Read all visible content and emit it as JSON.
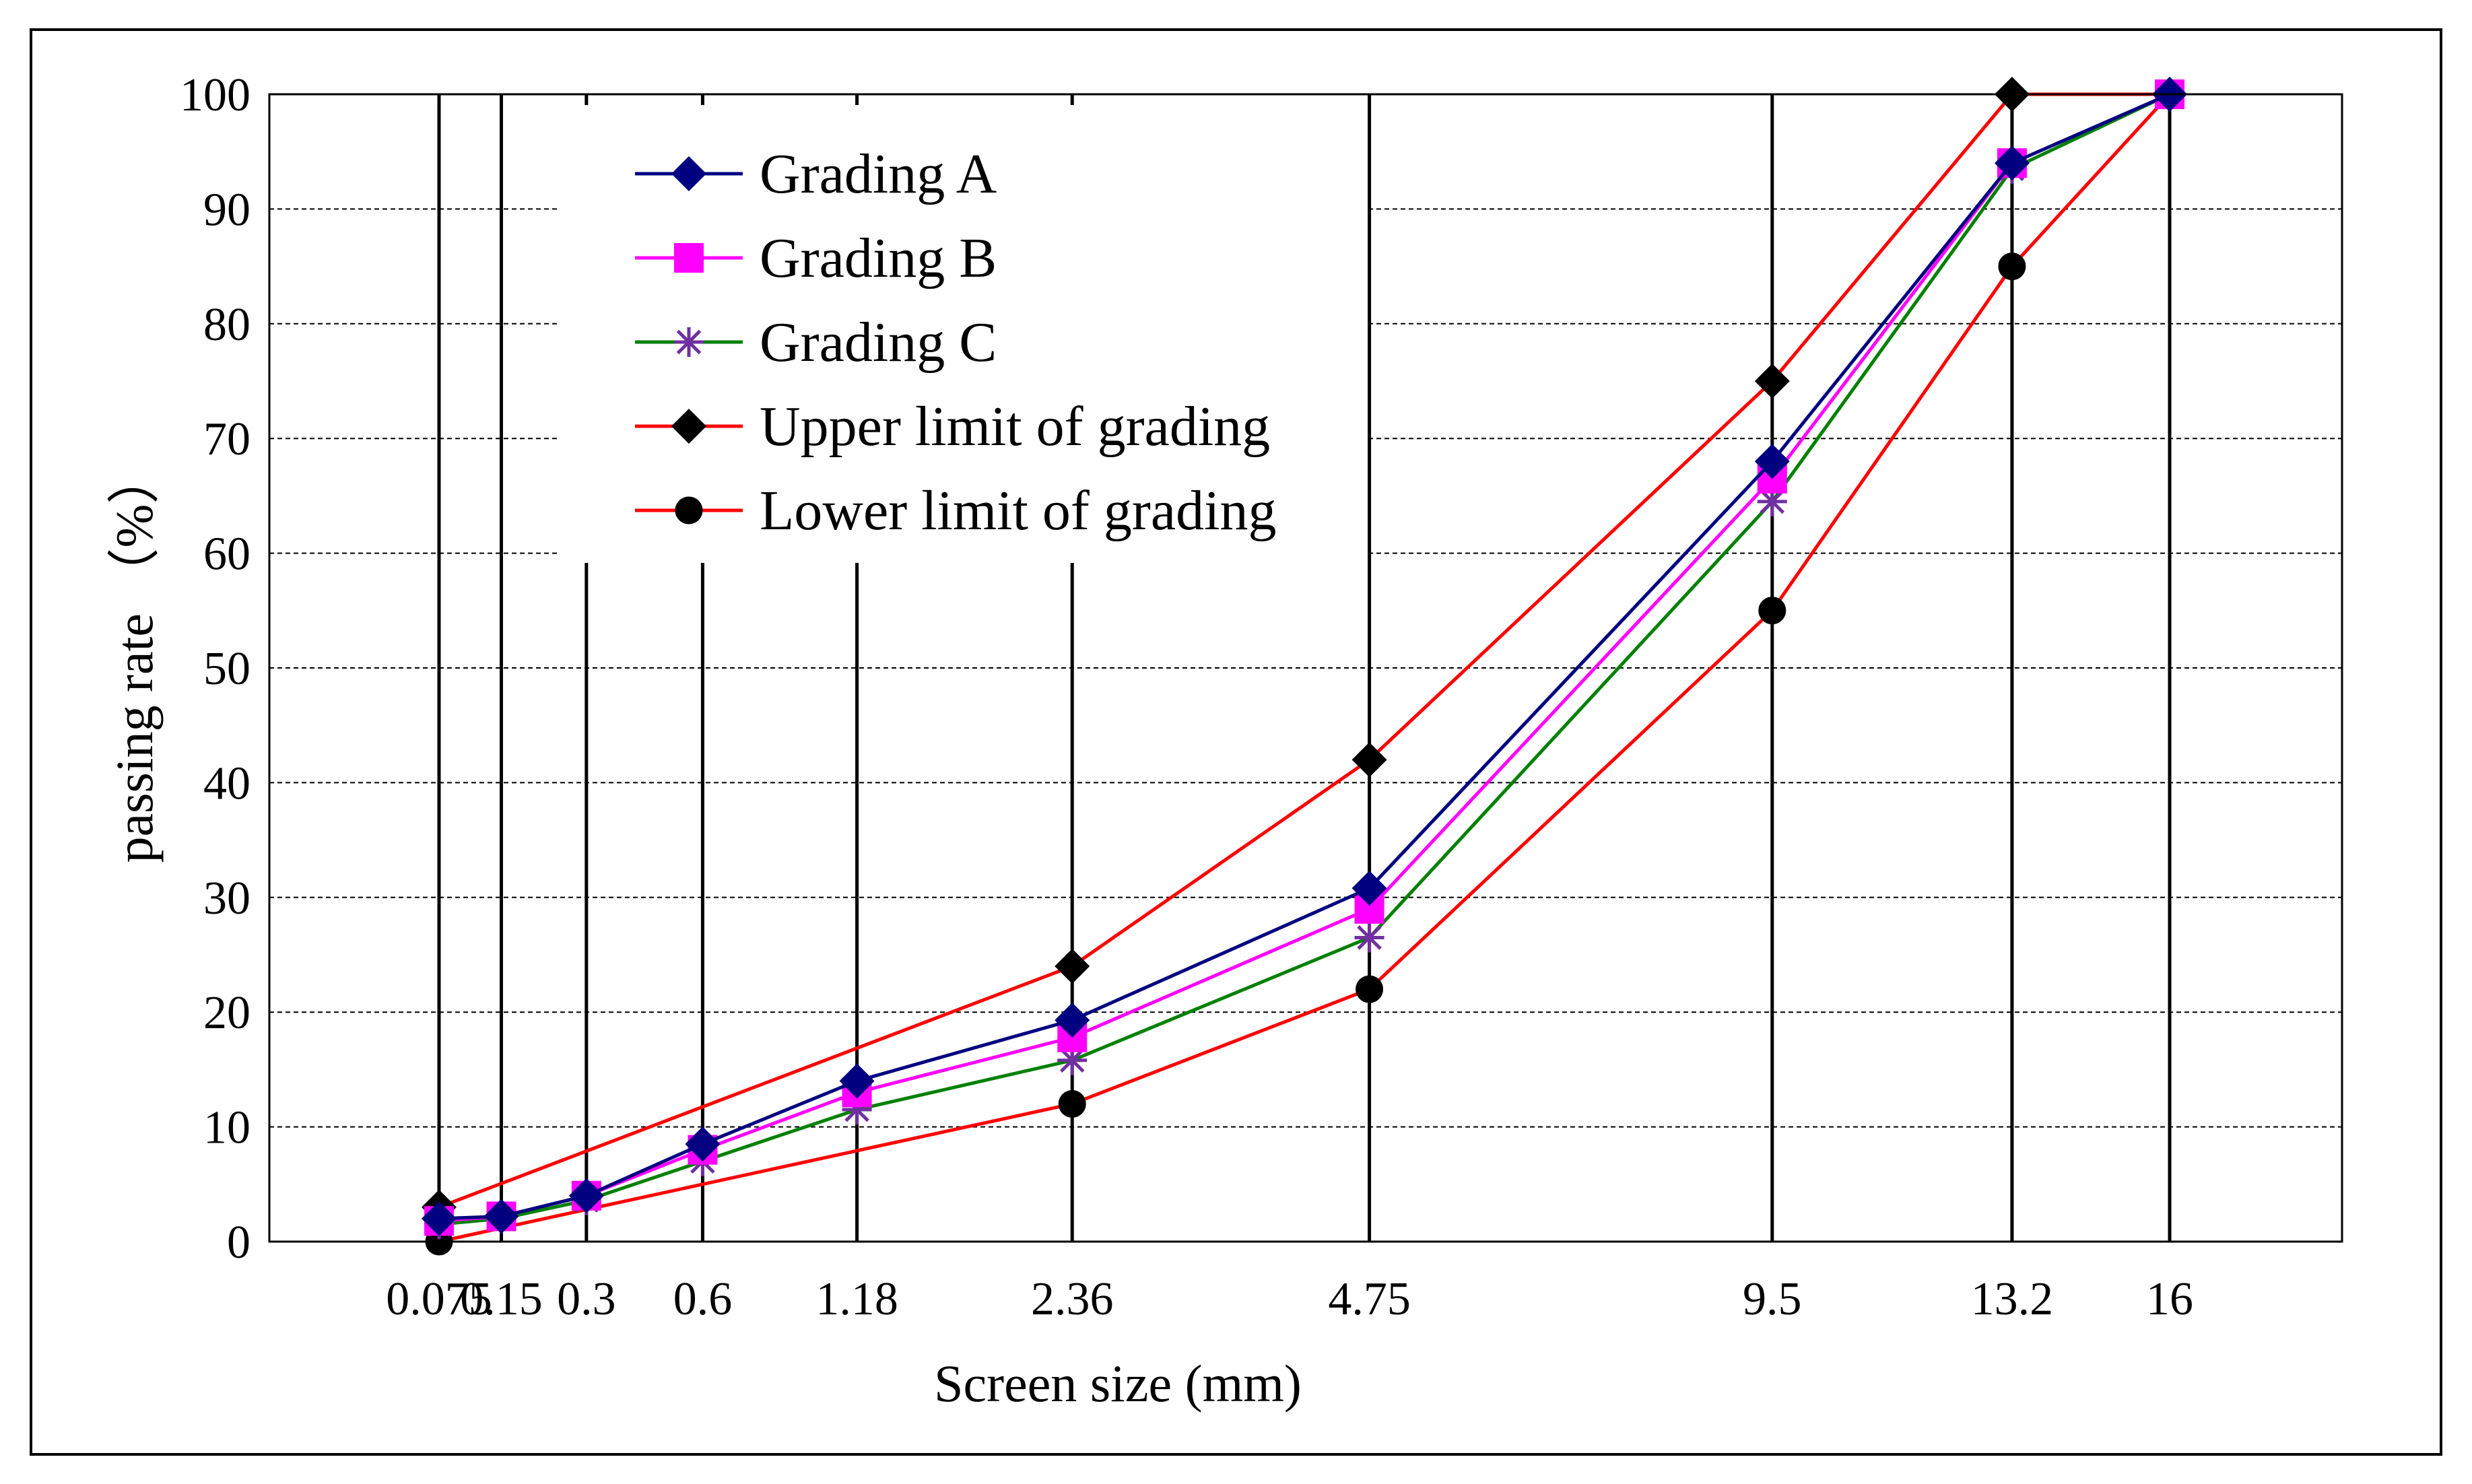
{
  "chart_data": {
    "type": "line",
    "title": "",
    "xlabel": "Screen size (mm)",
    "ylabel": "passing rate （%）",
    "ylim": [
      0,
      100
    ],
    "yticks": [
      0,
      10,
      20,
      30,
      40,
      50,
      60,
      70,
      80,
      90,
      100
    ],
    "grid": "horizontal dashed",
    "legend_position": "top-left",
    "categories": [
      "0.075",
      "0.15",
      "0.3",
      "0.6",
      "1.18",
      "2.36",
      "4.75",
      "9.5",
      "13.2",
      "16"
    ],
    "x": [
      0.075,
      0.15,
      0.3,
      0.6,
      1.18,
      2.36,
      4.75,
      9.5,
      13.2,
      16
    ],
    "series": [
      {
        "name": "Grading A",
        "color": "#000080",
        "marker": "diamond",
        "values": [
          2,
          2.2,
          4,
          8.5,
          14,
          19.3,
          30.8,
          68,
          94,
          100
        ]
      },
      {
        "name": "Grading B",
        "color": "#ff00ff",
        "marker": "square",
        "values": [
          1.8,
          2.2,
          4,
          8,
          13,
          17.8,
          29,
          66.5,
          94,
          100
        ]
      },
      {
        "name": "Grading C",
        "color": "#008000",
        "marker": "star",
        "marker_color": "#7030a0",
        "values": [
          1.5,
          2,
          3.6,
          7,
          11.5,
          15.8,
          26.5,
          64.5,
          93.5,
          100
        ]
      },
      {
        "name": "Upper limit of grading",
        "color": "#ff0000",
        "marker": "diamond",
        "marker_color": "#000000",
        "values": [
          3,
          null,
          null,
          null,
          null,
          24,
          42,
          75,
          100,
          100
        ]
      },
      {
        "name": "Lower limit of grading",
        "color": "#ff0000",
        "marker": "circle",
        "marker_color": "#000000",
        "values": [
          0,
          null,
          null,
          null,
          null,
          12,
          22,
          55,
          85,
          100
        ]
      }
    ]
  }
}
